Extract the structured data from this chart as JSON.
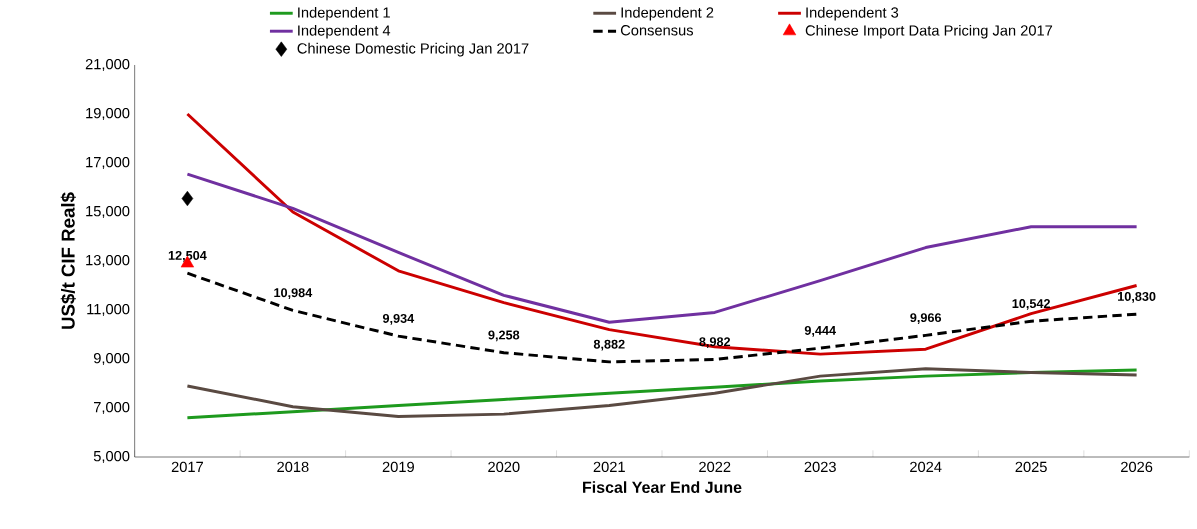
{
  "chart_data": {
    "type": "line",
    "xlabel": "Fiscal Year End June",
    "ylabel": "US$/t CIF  Real$",
    "categories": [
      "2017",
      "2018",
      "2019",
      "2020",
      "2021",
      "2022",
      "2023",
      "2024",
      "2025",
      "2026"
    ],
    "ylim": [
      5000,
      21000
    ],
    "yticks": [
      {
        "value": 5000,
        "label": "5,000"
      },
      {
        "value": 7000,
        "label": "7,000"
      },
      {
        "value": 9000,
        "label": "9,000"
      },
      {
        "value": 11000,
        "label": "11,000"
      },
      {
        "value": 13000,
        "label": "13,000"
      },
      {
        "value": 15000,
        "label": "15,000"
      },
      {
        "value": 17000,
        "label": "17,000"
      },
      {
        "value": 19000,
        "label": "19,000"
      },
      {
        "value": 21000,
        "label": "21,000"
      }
    ],
    "legend": "top",
    "grid": false,
    "series": [
      {
        "name": "Independent 1",
        "color": "#1e9a1e",
        "values": [
          6600,
          6850,
          7100,
          7350,
          7600,
          7850,
          8100,
          8300,
          8450,
          8550
        ]
      },
      {
        "name": "Independent 2",
        "color": "#5a4a42",
        "values": [
          7900,
          7050,
          6650,
          6750,
          7100,
          7600,
          8300,
          8600,
          8450,
          8350
        ]
      },
      {
        "name": "Independent 3",
        "color": "#cc0000",
        "values": [
          19000,
          15000,
          12600,
          11300,
          10200,
          9500,
          9200,
          9400,
          10850,
          12000
        ]
      },
      {
        "name": "Independent 4",
        "color": "#7030a0",
        "values": [
          16550,
          15150,
          13350,
          11600,
          10500,
          10900,
          12200,
          13550,
          14400,
          14400
        ]
      },
      {
        "name": "Consensus",
        "color": "#000000",
        "line_style": "dashed",
        "values": [
          12504,
          10984,
          9934,
          9258,
          8882,
          8982,
          9444,
          9966,
          10542,
          10830
        ],
        "value_labels": [
          "12,504",
          "10,984",
          "9,934",
          "9,258",
          "8,882",
          "8,982",
          "9,444",
          "9,966",
          "10,542",
          "10,830"
        ]
      },
      {
        "name": "Chinese Import Data Pricing Jan 2017",
        "type": "scatter",
        "marker": "triangle",
        "color": "#ff0000",
        "values": [
          12900,
          null,
          null,
          null,
          null,
          null,
          null,
          null,
          null,
          null
        ]
      },
      {
        "name": "Chinese Domestic Pricing Jan 2017",
        "type": "scatter",
        "marker": "diamond",
        "color": "#000000",
        "values": [
          15550,
          null,
          null,
          null,
          null,
          null,
          null,
          null,
          null,
          null
        ]
      }
    ]
  }
}
